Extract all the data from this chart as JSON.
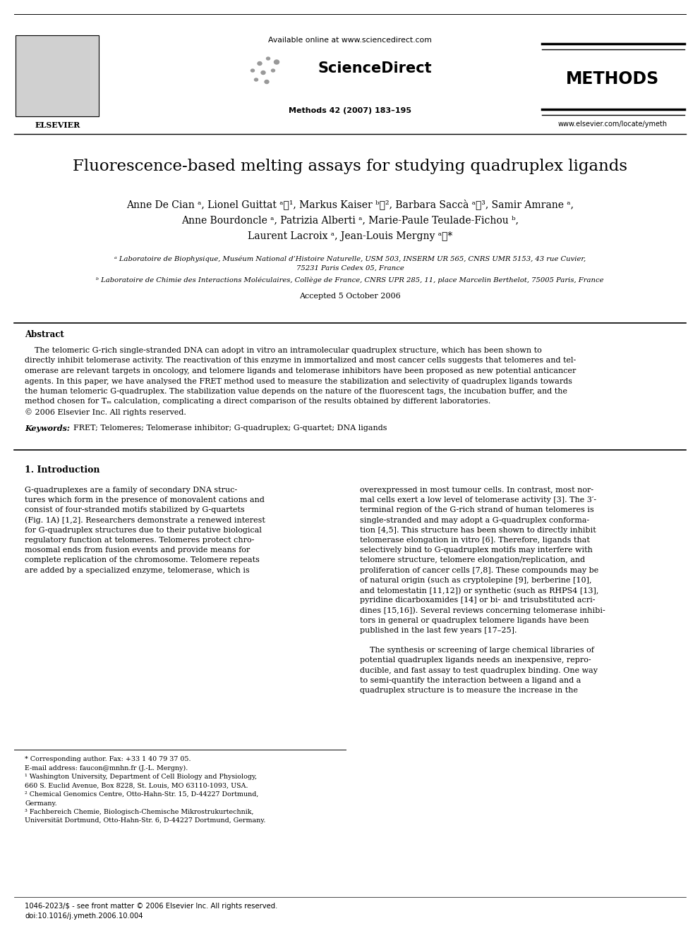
{
  "bg_color": "#ffffff",
  "title": "Fluorescence-based melting assays for studying quadruplex ligands",
  "available_online": "Available online at www.sciencedirect.com",
  "sciencedirect": "ScienceDirect",
  "methods_label": "METHODS",
  "journal_info": "Methods 42 (2007) 183–195",
  "website": "www.elsevier.com/locate/ymeth",
  "elsevier_label": "ELSEVIER",
  "authors_line1": "Anne De Cian ᵃ, Lionel Guittat ᵃⰻ¹, Markus Kaiser ᵇⰻ², Barbara Saccà ᵃⰻ³, Samir Amrane ᵃ,",
  "authors_line2": "Anne Bourdoncle ᵃ, Patrizia Alberti ᵃ, Marie-Paule Teulade-Fichou ᵇ,",
  "authors_line3": "Laurent Lacroix ᵃ, Jean-Louis Mergny ᵃⰻ*",
  "affil_a": "ᵃ Laboratoire de Biophysique, Muséum National d’Histoire Naturelle, USM 503, INSERM UR 565, CNRS UMR 5153, 43 rue Cuvier,",
  "affil_a2": "75231 Paris Cedex 05, France",
  "affil_b": "ᵇ Laboratoire de Chimie des Interactions Moléculaires, Collège de France, CNRS UPR 285, 11, place Marcelin Berthelot, 75005 Paris, France",
  "accepted": "Accepted 5 October 2006",
  "abstract_label": "Abstract",
  "keywords_label": "Keywords:",
  "keywords_text": "FRET; Telomeres; Telomerase inhibitor; G-quadruplex; G-quartet; DNA ligands",
  "section1_label": "1. Introduction",
  "footnote_star": "* Corresponding author. Fax: +33 1 40 79 37 05.",
  "footnote_email": "E-mail address: faucon@mnhn.fr (J.-L. Mergny).",
  "footnote_1a": "¹ Washington University, Department of Cell Biology and Physiology,",
  "footnote_1b": "660 S. Euclid Avenue, Box 8228, St. Louis, MO 63110-1093, USA.",
  "footnote_2a": "² Chemical Genomics Centre, Otto-Hahn-Str. 15, D-44227 Dortmund,",
  "footnote_2b": "Germany.",
  "footnote_3a": "³ Fachbereich Chemie, Biologisch-Chemische Mikrostrukurtechnik,",
  "footnote_3b": "Universität Dortmund, Otto-Hahn-Str. 6, D-44227 Dortmund, Germany.",
  "bottom_text1": "1046-2023/$ - see front matter © 2006 Elsevier Inc. All rights reserved.",
  "bottom_text2": "doi:10.1016/j.ymeth.2006.10.004",
  "abstract_lines": [
    "    The telomeric G-rich single-stranded DNA can adopt in vitro an intramolecular quadruplex structure, which has been shown to",
    "directly inhibit telomerase activity. The reactivation of this enzyme in immortalized and most cancer cells suggests that telomeres and tel-",
    "omerase are relevant targets in oncology, and telomere ligands and telomerase inhibitors have been proposed as new potential anticancer",
    "agents. In this paper, we have analysed the FRET method used to measure the stabilization and selectivity of quadruplex ligands towards",
    "the human telomeric G-quadruplex. The stabilization value depends on the nature of the fluorescent tags, the incubation buffer, and the",
    "method chosen for Tₘ calculation, complicating a direct comparison of the results obtained by different laboratories.",
    "© 2006 Elsevier Inc. All rights reserved."
  ],
  "col1_lines": [
    "G-quadruplexes are a family of secondary DNA struc-",
    "tures which form in the presence of monovalent cations and",
    "consist of four-stranded motifs stabilized by G-quartets",
    "(Fig. 1A) [1,2]. Researchers demonstrate a renewed interest",
    "for G-quadruplex structures due to their putative biological",
    "regulatory function at telomeres. Telomeres protect chro-",
    "mosomal ends from fusion events and provide means for",
    "complete replication of the chromosome. Telomere repeats",
    "are added by a specialized enzyme, telomerase, which is"
  ],
  "col2_lines": [
    "overexpressed in most tumour cells. In contrast, most nor-",
    "mal cells exert a low level of telomerase activity [3]. The 3′-",
    "terminal region of the G-rich strand of human telomeres is",
    "single-stranded and may adopt a G-quadruplex conforma-",
    "tion [4,5]. This structure has been shown to directly inhibit",
    "telomerase elongation in vitro [6]. Therefore, ligands that",
    "selectively bind to G-quadruplex motifs may interfere with",
    "telomere structure, telomere elongation/replication, and",
    "proliferation of cancer cells [7,8]. These compounds may be",
    "of natural origin (such as cryptolepine [9], berberine [10],",
    "and telomestatin [11,12]) or synthetic (such as RHPS4 [13],",
    "pyridine dicarboxamides [14] or bi- and trisubstituted acri-",
    "dines [15,16]). Several reviews concerning telomerase inhibi-",
    "tors in general or quadruplex telomere ligands have been",
    "published in the last few years [17–25].",
    "",
    "    The synthesis or screening of large chemical libraries of",
    "potential quadruplex ligands needs an inexpensive, repro-",
    "ducible, and fast assay to test quadruplex binding. One way",
    "to semi-quantify the interaction between a ligand and a",
    "quadruplex structure is to measure the increase in the"
  ]
}
